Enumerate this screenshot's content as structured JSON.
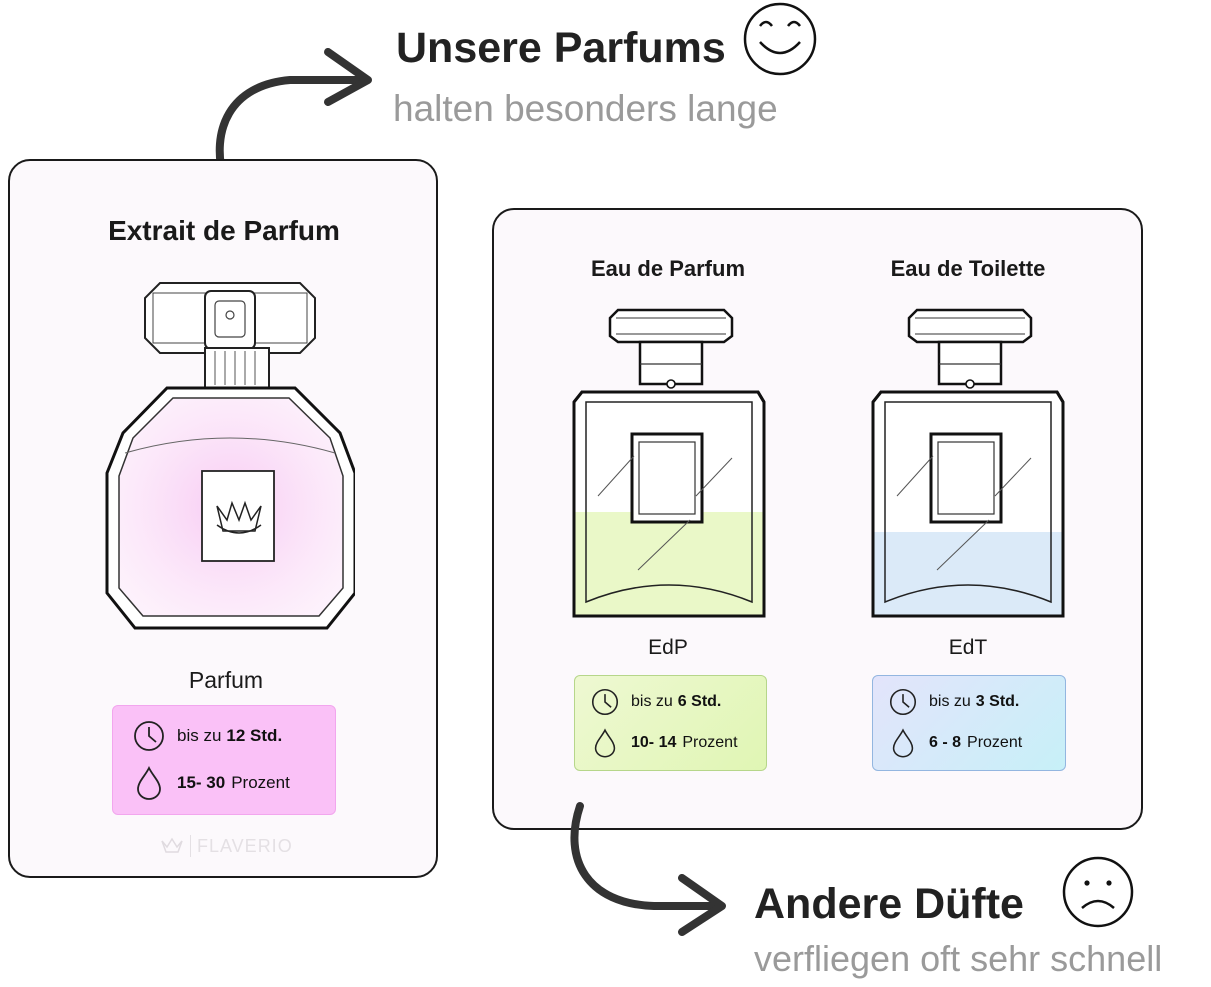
{
  "header_top": {
    "title": "Unsere Parfums",
    "subtitle": "halten besonders lange",
    "emoji": "smiley-happy-icon"
  },
  "header_bottom": {
    "title": "Andere Düfte",
    "subtitle": "verfliegen oft sehr schnell",
    "emoji": "smiley-sad-icon"
  },
  "extrait": {
    "title": "Extrait de Parfum",
    "label": "Parfum",
    "duration_prefix": "bis zu",
    "duration_value": "12 Std.",
    "concentration_value": "15- 30",
    "concentration_unit": "Prozent",
    "liquid_color": "#f7c8f3",
    "watermark": "FLAVERIO"
  },
  "products": [
    {
      "title": "Eau de Parfum",
      "label": "EdP",
      "duration_prefix": "bis zu",
      "duration_value": "6 Std.",
      "concentration_value": "10- 14",
      "concentration_unit": "Prozent",
      "liquid_color": "#eaf8c8"
    },
    {
      "title": "Eau de Toilette",
      "label": "EdT",
      "duration_prefix": "bis zu",
      "duration_value": "3 Std.",
      "concentration_value": "6 - 8",
      "concentration_unit": "Prozent",
      "liquid_color": "#dbeaf8"
    }
  ]
}
